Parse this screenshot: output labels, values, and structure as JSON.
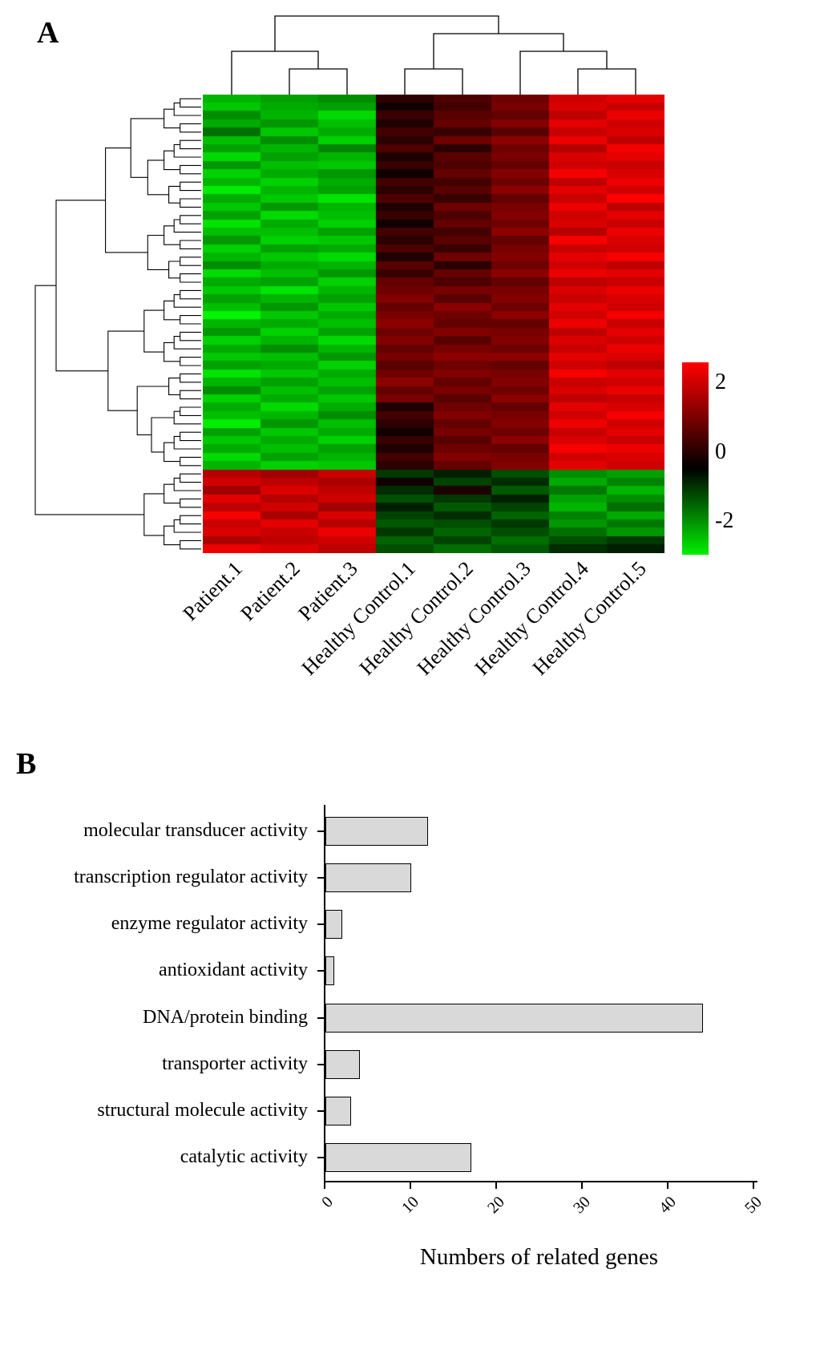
{
  "figure": {
    "panel_a_label": "A",
    "panel_b_label": "B"
  },
  "chart_data": [
    {
      "type": "heatmap",
      "panel": "A",
      "columns": [
        "Patient.1",
        "Patient.2",
        "Patient.3",
        "Healthy Control.1",
        "Healthy Control.2",
        "Healthy Control.3",
        "Healthy Control.4",
        "Healthy Control.5"
      ],
      "colormap": {
        "negative": "#00ff00",
        "zero": "#000000",
        "positive": "#ff0000"
      },
      "colorbar_ticks": [
        "2",
        "0",
        "-2"
      ],
      "value_range": [
        -2.4,
        2.4
      ],
      "col_dendrogram": [
        [
          0,
          [
            1,
            2
          ]
        ],
        [
          [
            3,
            4
          ],
          [
            5,
            [
              6,
              7
            ]
          ]
        ]
      ],
      "row_blocks": [
        45,
        10
      ],
      "values": [
        [
          -1.6,
          -1.4,
          -1.2,
          0.3,
          0.6,
          0.9,
          1.9,
          2.1
        ],
        [
          -1.8,
          -1.5,
          -1.4,
          0.1,
          0.5,
          1.0,
          2.0,
          1.8
        ],
        [
          -1.2,
          -1.6,
          -2.0,
          0.4,
          0.7,
          0.8,
          1.7,
          2.2
        ],
        [
          -1.5,
          -1.3,
          -1.7,
          0.2,
          0.8,
          1.1,
          2.1,
          1.9
        ],
        [
          -0.9,
          -1.8,
          -1.5,
          0.5,
          0.4,
          0.7,
          1.8,
          2.0
        ],
        [
          -1.7,
          -1.2,
          -1.9,
          0.3,
          0.9,
          1.2,
          2.2,
          1.7
        ],
        [
          -1.4,
          -1.6,
          -1.1,
          0.6,
          0.3,
          0.9,
          1.6,
          2.3
        ],
        [
          -2.0,
          -1.4,
          -1.6,
          0.2,
          0.7,
          1.0,
          2.0,
          2.1
        ],
        [
          -1.3,
          -1.7,
          -1.8,
          0.4,
          0.6,
          0.8,
          1.9,
          1.8
        ],
        [
          -1.9,
          -1.5,
          -1.3,
          0.1,
          0.8,
          1.1,
          2.3,
          2.0
        ],
        [
          -1.6,
          -1.9,
          -1.5,
          0.5,
          0.5,
          0.9,
          1.7,
          2.2
        ],
        [
          -2.2,
          -1.6,
          -1.4,
          0.3,
          0.7,
          1.2,
          2.1,
          1.9
        ],
        [
          -1.5,
          -1.8,
          -2.1,
          0.6,
          0.4,
          0.8,
          1.8,
          2.4
        ],
        [
          -1.8,
          -1.3,
          -1.6,
          0.2,
          0.9,
          1.0,
          2.2,
          1.7
        ],
        [
          -1.4,
          -2.0,
          -1.7,
          0.4,
          0.6,
          1.1,
          1.9,
          2.1
        ],
        [
          -2.1,
          -1.5,
          -1.9,
          0.1,
          0.8,
          0.9,
          2.0,
          1.8
        ],
        [
          -1.7,
          -1.7,
          -1.4,
          0.5,
          0.5,
          1.2,
          1.6,
          2.2
        ],
        [
          -1.3,
          -1.9,
          -1.8,
          0.3,
          0.7,
          0.8,
          2.3,
          2.0
        ],
        [
          -1.9,
          -1.4,
          -1.5,
          0.6,
          0.4,
          1.0,
          1.8,
          1.9
        ],
        [
          -1.6,
          -1.8,
          -2.0,
          0.2,
          0.9,
          1.1,
          2.1,
          2.3
        ],
        [
          -1.2,
          -1.5,
          -1.6,
          0.7,
          0.3,
          0.9,
          1.9,
          1.7
        ],
        [
          -2.0,
          -1.7,
          -1.3,
          0.4,
          0.8,
          1.2,
          2.2,
          2.1
        ],
        [
          -1.5,
          -1.4,
          -1.9,
          0.8,
          0.6,
          0.8,
          1.7,
          1.8
        ],
        [
          -1.8,
          -2.1,
          -1.6,
          0.9,
          1.0,
          1.0,
          2.0,
          2.2
        ],
        [
          -1.4,
          -1.6,
          -1.4,
          1.1,
          0.7,
          1.1,
          1.8,
          2.0
        ],
        [
          -1.7,
          -1.3,
          -1.8,
          0.8,
          1.2,
          0.9,
          2.1,
          1.9
        ],
        [
          -2.3,
          -1.8,
          -1.5,
          1.0,
          0.9,
          1.2,
          1.9,
          2.3
        ],
        [
          -1.6,
          -1.5,
          -1.7,
          1.2,
          0.8,
          0.8,
          2.2,
          1.8
        ],
        [
          -1.3,
          -1.9,
          -1.4,
          0.9,
          1.1,
          1.0,
          1.7,
          2.1
        ],
        [
          -1.9,
          -1.6,
          -2.0,
          1.1,
          0.7,
          1.1,
          2.0,
          1.9
        ],
        [
          -1.5,
          -1.2,
          -1.6,
          0.8,
          1.0,
          0.9,
          1.8,
          2.2
        ],
        [
          -1.8,
          -1.7,
          -1.3,
          1.0,
          1.2,
          1.2,
          2.1,
          2.0
        ],
        [
          -1.4,
          -1.5,
          -1.9,
          0.7,
          0.9,
          0.8,
          1.9,
          1.7
        ],
        [
          -2.1,
          -1.8,
          -1.5,
          0.9,
          1.1,
          1.0,
          2.3,
          2.1
        ],
        [
          -1.6,
          -1.4,
          -1.7,
          1.2,
          0.8,
          1.1,
          1.8,
          1.9
        ],
        [
          -1.2,
          -1.7,
          -1.4,
          0.8,
          1.0,
          0.9,
          2.0,
          2.2
        ],
        [
          -1.9,
          -1.5,
          -1.8,
          1.0,
          0.7,
          1.2,
          1.7,
          1.8
        ],
        [
          -1.5,
          -2.0,
          -1.5,
          0.2,
          0.9,
          0.8,
          2.1,
          2.0
        ],
        [
          -1.7,
          -1.6,
          -1.2,
          0.5,
          1.1,
          1.0,
          1.9,
          2.3
        ],
        [
          -2.2,
          -1.3,
          -1.7,
          0.3,
          0.8,
          1.1,
          2.2,
          1.9
        ],
        [
          -1.4,
          -1.8,
          -1.5,
          0.1,
          1.0,
          0.9,
          1.8,
          2.1
        ],
        [
          -1.8,
          -1.5,
          -1.9,
          0.4,
          0.7,
          1.2,
          2.0,
          1.8
        ],
        [
          -1.5,
          -1.7,
          -1.4,
          0.2,
          0.9,
          0.8,
          2.3,
          2.2
        ],
        [
          -2.0,
          -1.4,
          -1.6,
          0.5,
          1.1,
          1.0,
          1.9,
          2.0
        ],
        [
          -1.6,
          -1.9,
          -1.8,
          0.3,
          0.8,
          1.1,
          2.1,
          1.9
        ],
        [
          1.6,
          1.4,
          1.8,
          -0.4,
          -0.2,
          -0.6,
          -1.2,
          -1.4
        ],
        [
          1.9,
          1.7,
          1.5,
          0.1,
          -0.5,
          -0.3,
          -1.5,
          -1.1
        ],
        [
          1.4,
          2.0,
          1.7,
          -0.3,
          0.2,
          -0.7,
          -1.0,
          -1.6
        ],
        [
          2.1,
          1.6,
          1.9,
          -0.6,
          -0.4,
          -0.2,
          -1.4,
          -1.2
        ],
        [
          1.7,
          1.9,
          1.4,
          -0.2,
          -0.7,
          -0.5,
          -1.6,
          -0.9
        ],
        [
          2.3,
          1.5,
          2.0,
          -0.5,
          -0.3,
          -0.8,
          -1.1,
          -1.5
        ],
        [
          1.8,
          2.1,
          1.6,
          -0.7,
          -0.6,
          -0.4,
          -1.3,
          -1.0
        ],
        [
          2.0,
          1.8,
          2.2,
          -0.4,
          -0.8,
          -0.6,
          -0.9,
          -1.3
        ],
        [
          1.5,
          1.7,
          1.9,
          -0.8,
          -0.5,
          -0.9,
          -0.6,
          -0.4
        ],
        [
          2.2,
          2.0,
          1.7,
          -0.6,
          -0.9,
          -0.7,
          -0.3,
          -0.2
        ]
      ]
    },
    {
      "type": "bar",
      "panel": "B",
      "orientation": "horizontal",
      "categories": [
        "molecular transducer activity",
        "transcription regulator activity",
        "enzyme regulator activity",
        "antioxidant activity",
        "DNA/protein binding",
        "transporter activity",
        "structural molecule activity",
        "catalytic activity"
      ],
      "values": [
        12,
        10,
        2,
        1,
        44,
        4,
        3,
        17
      ],
      "xlabel": "Numbers of related genes",
      "xticks": [
        0,
        10,
        20,
        30,
        40,
        50
      ],
      "xlim": [
        0,
        50
      ],
      "bar_fill": "#d9d9d9",
      "bar_stroke": "#000000",
      "grid": false,
      "legend": false
    }
  ]
}
